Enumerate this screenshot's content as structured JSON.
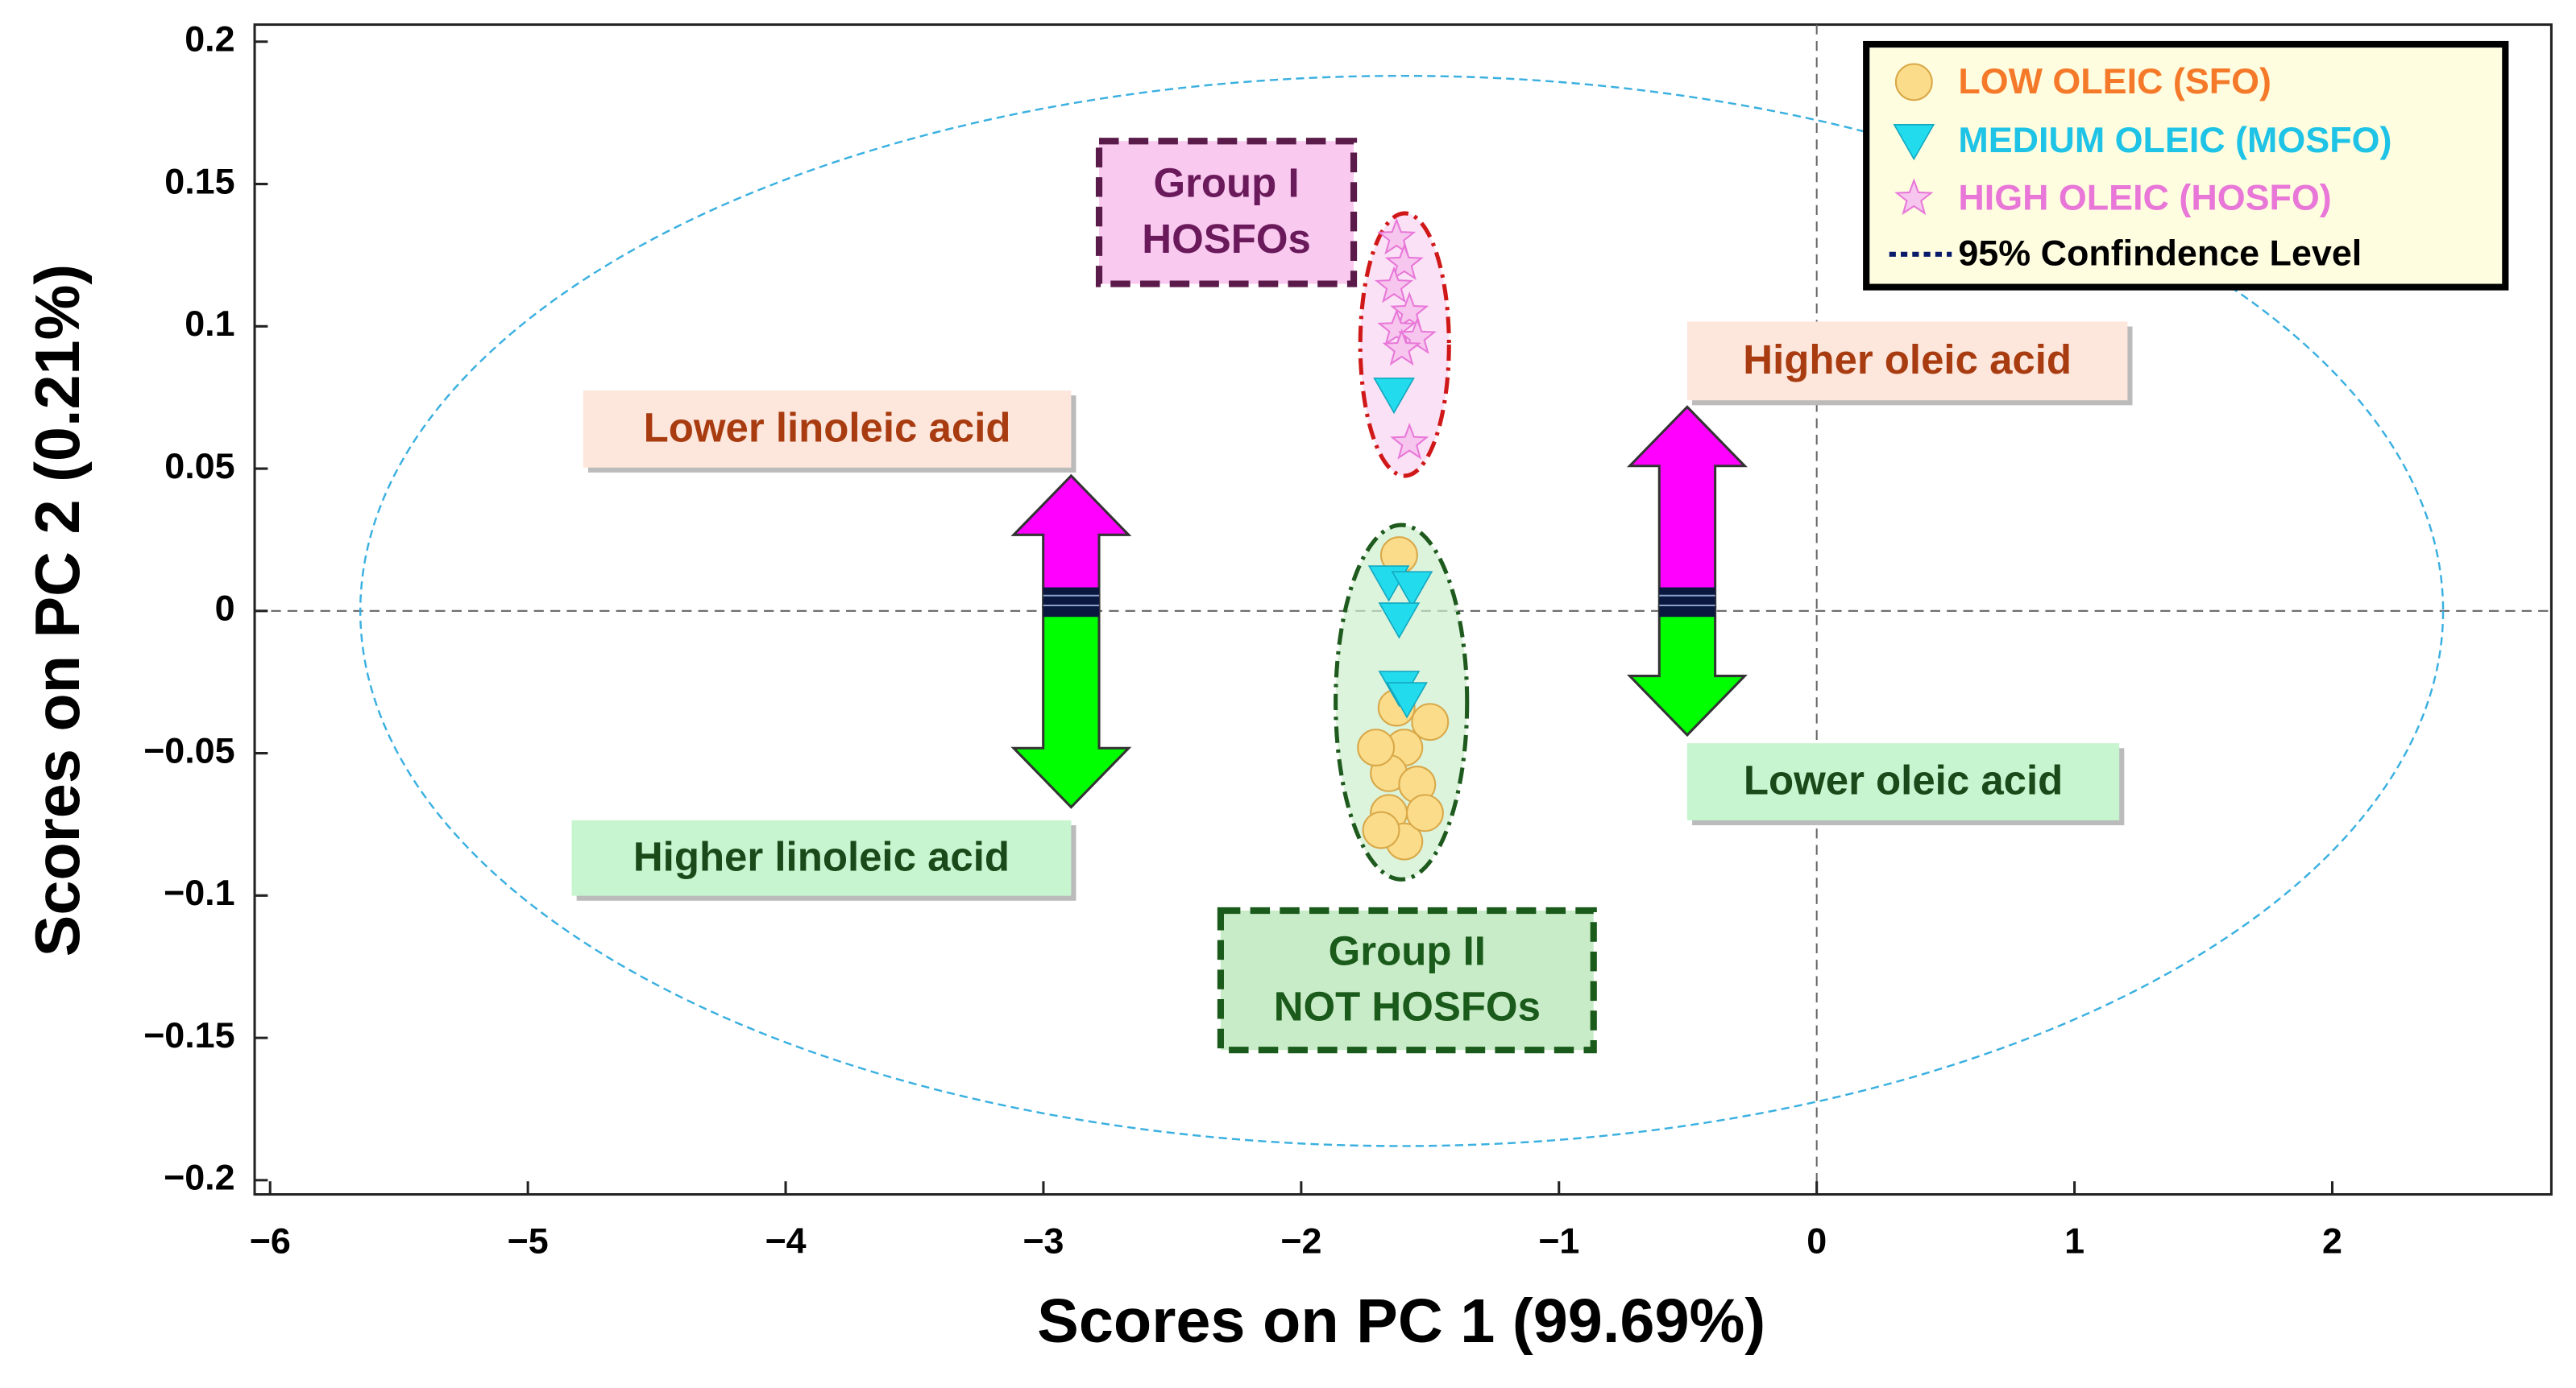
{
  "chart_data": {
    "type": "scatter",
    "xlabel": "Scores on PC 1 (99.69%)",
    "ylabel": "Scores on PC 2 (0.21%)",
    "xlim": [
      -6.06,
      2.85
    ],
    "ylim": [
      -0.205,
      0.206
    ],
    "xticks": [
      {
        "value": -6,
        "label": "−6"
      },
      {
        "value": -5,
        "label": "−5"
      },
      {
        "value": -4,
        "label": "−4"
      },
      {
        "value": -3,
        "label": "−3"
      },
      {
        "value": -2,
        "label": "−2"
      },
      {
        "value": -1,
        "label": "−1"
      },
      0,
      1,
      2
    ],
    "yticks": [
      {
        "value": -0.2,
        "label": "−0.2"
      },
      {
        "value": -0.15,
        "label": "−0.15"
      },
      {
        "value": -0.1,
        "label": "−0.1"
      },
      {
        "value": -0.05,
        "label": "−0.05"
      },
      0,
      0.05,
      0.1,
      0.15,
      0.2
    ],
    "series": [
      {
        "name": "LOW OLEIC (SFO)",
        "color": "#f47a2a",
        "marker": "circle",
        "marker_color": "#fadc8a",
        "x": [
          -1.62,
          -1.63,
          -1.6,
          -1.66,
          -1.55,
          -1.66,
          -1.6,
          -1.69,
          -1.52,
          -1.5,
          -1.71
        ],
        "values": [
          0.0196,
          -0.034,
          -0.048,
          -0.057,
          -0.061,
          -0.071,
          -0.081,
          -0.077,
          -0.071,
          -0.039,
          -0.048
        ]
      },
      {
        "name": "MEDIUM OLEIC (MOSFO)",
        "color": "#1fc3e6",
        "marker": "triangle-down",
        "marker_color": "#22dced",
        "x": [
          -1.64,
          -1.66,
          -1.57,
          -1.62,
          -1.62,
          -1.59
        ],
        "values": [
          0.076,
          0.01,
          0.008,
          -0.003,
          -0.027,
          -0.031
        ]
      },
      {
        "name": "HIGH OLEIC (HOSFO)",
        "color": "#e877d8",
        "marker": "star",
        "marker_color": "#f6c6ee",
        "x": [
          -1.63,
          -1.6,
          -1.64,
          -1.58,
          -1.63,
          -1.55,
          -1.61,
          -1.58
        ],
        "values": [
          0.131,
          0.122,
          0.114,
          0.105,
          0.099,
          0.096,
          0.092,
          0.059
        ]
      }
    ],
    "confidence_ellipse": {
      "name": "95% Confindence Level",
      "color": "#3ab0e0",
      "center": [
        -1.61,
        0
      ],
      "radii": [
        4.04,
        0.188
      ]
    },
    "annotations": [
      {
        "lines": [
          "Group I",
          "HOSFOs"
        ]
      },
      {
        "lines": [
          "Group II",
          "NOT HOSFOs"
        ]
      },
      {
        "lines": [
          "Lower linoleic acid"
        ]
      },
      {
        "lines": [
          "Higher linoleic acid"
        ]
      },
      {
        "lines": [
          "Higher oleic acid"
        ]
      },
      {
        "lines": [
          "Lower oleic acid"
        ]
      }
    ]
  }
}
